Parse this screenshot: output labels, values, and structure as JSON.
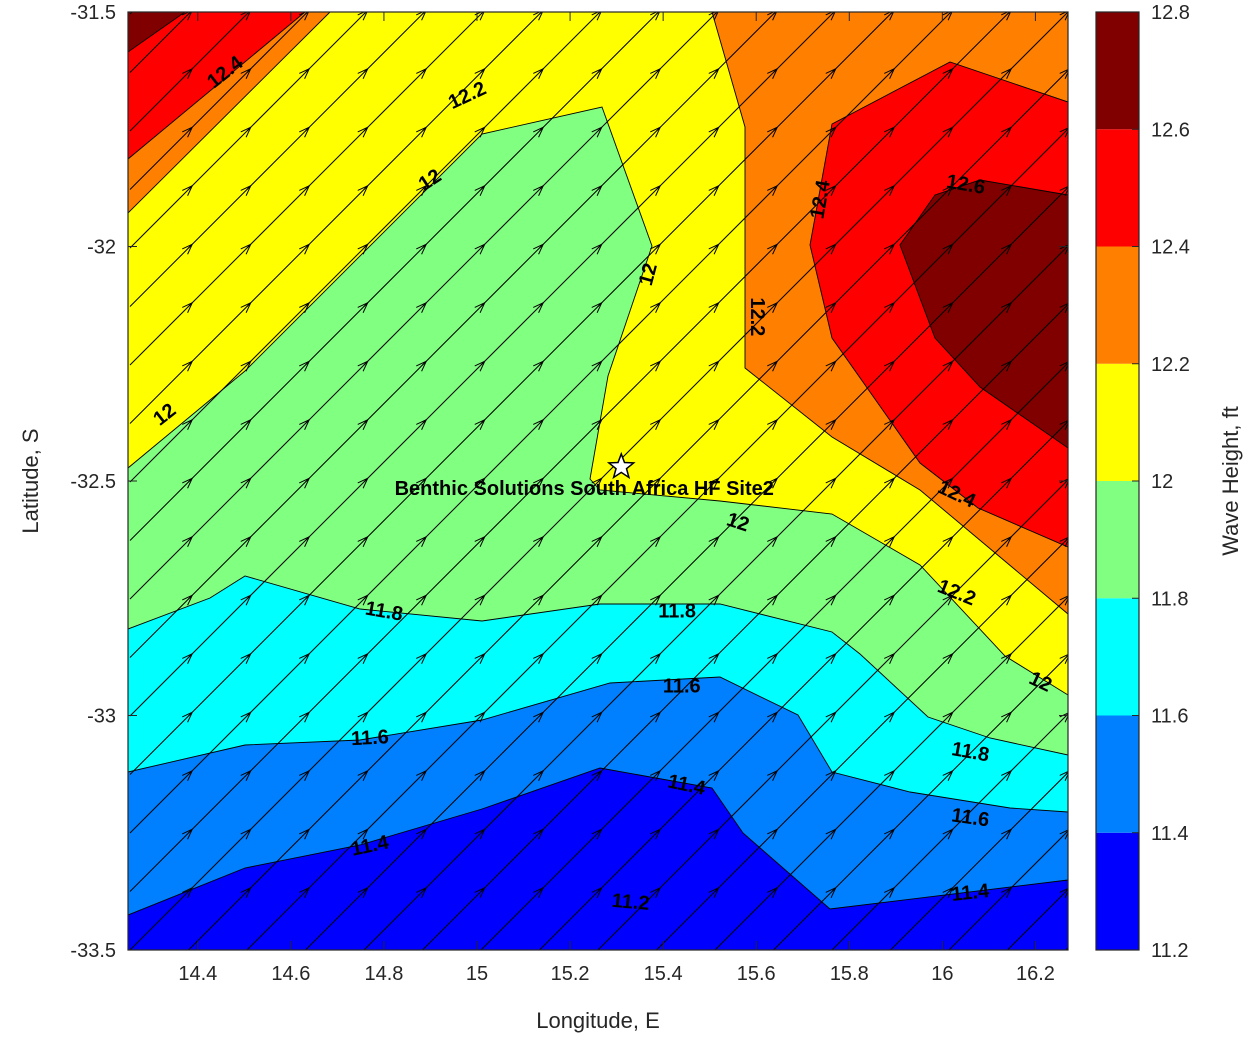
{
  "chart_data": {
    "type": "contour",
    "xlabel": "Longitude, E",
    "ylabel": "Latitude, S",
    "xlim": [
      14.25,
      16.27
    ],
    "ylim": [
      -33.5,
      -31.5
    ],
    "x_ticks": [
      "14.4",
      "14.6",
      "14.8",
      "15",
      "15.2",
      "15.4",
      "15.6",
      "15.8",
      "16",
      "16.2"
    ],
    "y_ticks": [
      "-31.5",
      "-32",
      "-32.5",
      "-33",
      "-33.5"
    ],
    "colorbar": {
      "label": "Wave Height, ft",
      "range": [
        11.2,
        12.8
      ],
      "ticks": [
        "11.2",
        "11.4",
        "11.6",
        "11.8",
        "12",
        "12.2",
        "12.4",
        "12.6",
        "12.8"
      ],
      "colors": [
        "#0000ff",
        "#0080ff",
        "#00ffff",
        "#80ff80",
        "#ffff00",
        "#ff8000",
        "#ff0000",
        "#800000"
      ]
    },
    "level_colors": {
      "11.2": "#0000ff",
      "11.4": "#0080ff",
      "11.6": "#00ffff",
      "11.8": "#80ff80",
      "12": "#ffff00",
      "12.2": "#ff8000",
      "12.4": "#ff0000",
      "12.6": "#800000"
    },
    "contour_labels": [
      {
        "text": "12.4",
        "x": 14.46,
        "y": -31.63,
        "rot": -38
      },
      {
        "text": "12.2",
        "x": 14.98,
        "y": -31.68,
        "rot": -25
      },
      {
        "text": "12",
        "x": 14.9,
        "y": -31.86,
        "rot": -33
      },
      {
        "text": "12",
        "x": 15.37,
        "y": -32.06,
        "rot": -75
      },
      {
        "text": "12",
        "x": 14.33,
        "y": -32.36,
        "rot": -38
      },
      {
        "text": "12.2",
        "x": 15.6,
        "y": -32.15,
        "rot": 90
      },
      {
        "text": "12.4",
        "x": 15.74,
        "y": -31.9,
        "rot": -80
      },
      {
        "text": "12.6",
        "x": 16.05,
        "y": -31.87,
        "rot": 10
      },
      {
        "text": "12.4",
        "x": 16.03,
        "y": -32.53,
        "rot": 25
      },
      {
        "text": "12",
        "x": 15.56,
        "y": -32.59,
        "rot": 18
      },
      {
        "text": "12.2",
        "x": 16.03,
        "y": -32.74,
        "rot": 22
      },
      {
        "text": "12",
        "x": 16.21,
        "y": -32.93,
        "rot": 25
      },
      {
        "text": "11.8",
        "x": 14.8,
        "y": -32.78,
        "rot": 10
      },
      {
        "text": "11.8",
        "x": 15.43,
        "y": -32.78,
        "rot": 0
      },
      {
        "text": "11.6",
        "x": 15.44,
        "y": -32.94,
        "rot": 0
      },
      {
        "text": "11.8",
        "x": 16.06,
        "y": -33.08,
        "rot": 10
      },
      {
        "text": "11.6",
        "x": 14.77,
        "y": -33.05,
        "rot": -3
      },
      {
        "text": "11.6",
        "x": 16.06,
        "y": -33.22,
        "rot": 8
      },
      {
        "text": "11.4",
        "x": 15.45,
        "y": -33.15,
        "rot": 12
      },
      {
        "text": "11.4",
        "x": 14.77,
        "y": -33.28,
        "rot": -12
      },
      {
        "text": "11.2",
        "x": 15.33,
        "y": -33.4,
        "rot": 5
      },
      {
        "text": "11.4",
        "x": 16.06,
        "y": -33.38,
        "rot": -6
      }
    ],
    "vector_field": {
      "direction_deg": 45,
      "x_range": [
        14.25,
        16.27
      ],
      "y_range": [
        -33.5,
        -31.5
      ]
    },
    "site_marker": {
      "name": "Benthic Solutions South Africa HF Site2",
      "x": 15.31,
      "y": -32.47
    }
  }
}
